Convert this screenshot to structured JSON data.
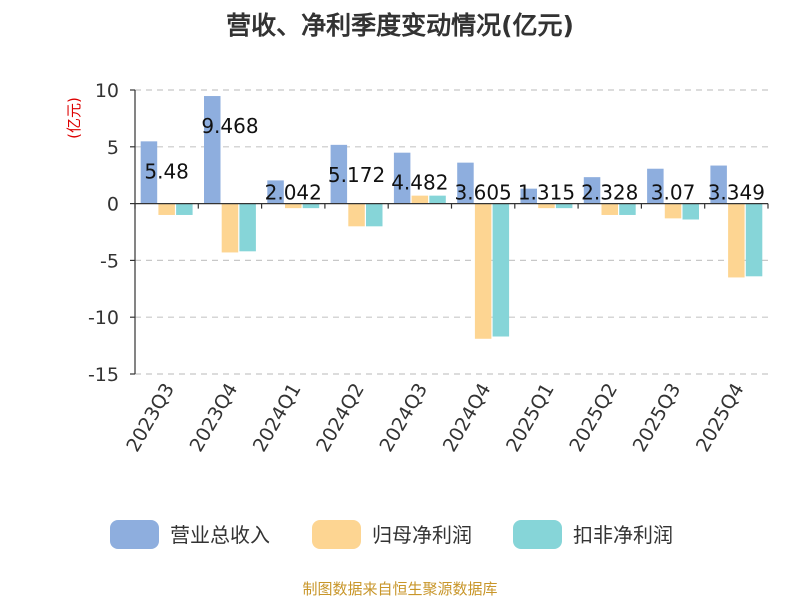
{
  "chart_data": {
    "type": "bar",
    "title": "营收、净利季度变动情况(亿元)",
    "unit_label": "(亿元)",
    "categories": [
      "2023Q3",
      "2023Q4",
      "2024Q1",
      "2024Q2",
      "2024Q3",
      "2024Q4",
      "2025Q1",
      "2025Q2",
      "2025Q3",
      "2025Q4"
    ],
    "series": [
      {
        "name": "营业总收入",
        "color": "#8eaede",
        "values": [
          5.48,
          9.468,
          2.042,
          5.172,
          4.482,
          3.605,
          1.315,
          2.328,
          3.07,
          3.349
        ]
      },
      {
        "name": "归母净利润",
        "color": "#fdd592",
        "values": [
          -1.0,
          -4.3,
          -0.4,
          -2.0,
          0.7,
          -11.9,
          -0.4,
          -1.0,
          -1.3,
          -6.5
        ]
      },
      {
        "name": "扣非净利润",
        "color": "#86d5d8",
        "values": [
          -1.0,
          -4.2,
          -0.4,
          -2.0,
          0.7,
          -11.7,
          -0.4,
          -1.0,
          -1.4,
          -6.4
        ]
      }
    ],
    "data_labels": [
      "5.48",
      "9.468",
      "2.042",
      "5.172",
      "4.482",
      "3.605",
      "1.315",
      "2.328",
      "3.07",
      "3.349"
    ],
    "ylim": [
      -15,
      10
    ],
    "yticks": [
      10,
      5,
      0,
      -5,
      -10,
      -15
    ],
    "grid": true,
    "legend_position": "bottom"
  },
  "source": "制图数据来自恒生聚源数据库"
}
